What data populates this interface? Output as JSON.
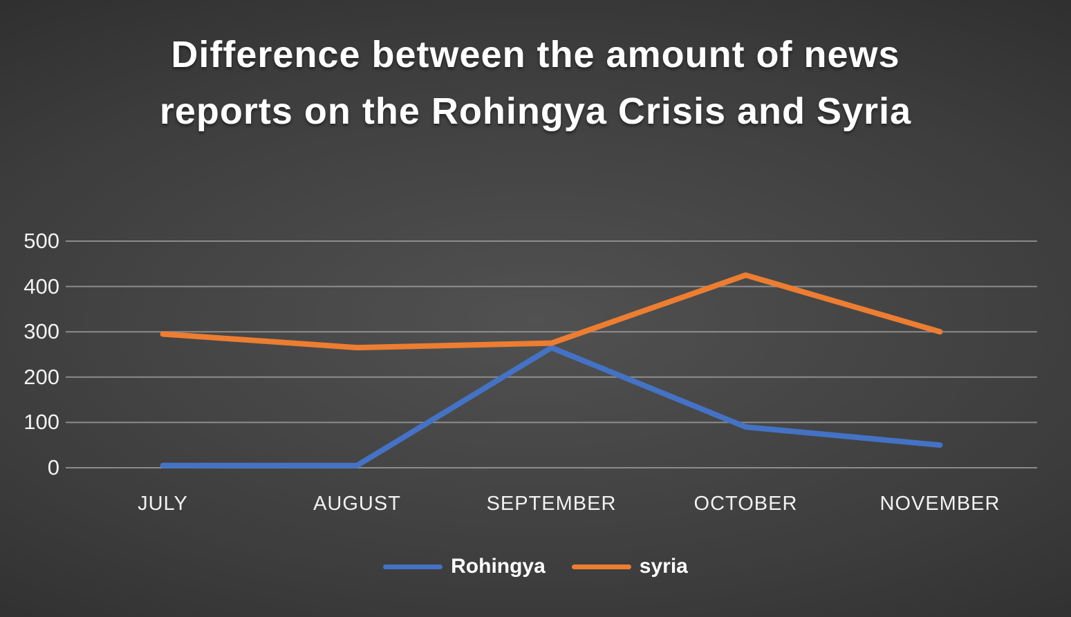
{
  "title": "Difference between the amount of news reports on the Rohingya Crisis and Syria",
  "chart_data": {
    "type": "line",
    "categories": [
      "JULY",
      "AUGUST",
      "SEPTEMBER",
      "OCTOBER",
      "NOVEMBER"
    ],
    "series": [
      {
        "name": "Rohingya",
        "color": "#4472c4",
        "values": [
          5,
          5,
          265,
          90,
          50
        ]
      },
      {
        "name": "syria",
        "color": "#ed7d31",
        "values": [
          295,
          265,
          275,
          425,
          300
        ]
      }
    ],
    "title": "Difference between the amount of news reports on the Rohingya Crisis and Syria",
    "xlabel": "",
    "ylabel": "",
    "ylim": [
      0,
      500
    ],
    "yticks": [
      0,
      100,
      200,
      300,
      400,
      500
    ],
    "grid": true,
    "legend_position": "bottom"
  },
  "colors": {
    "background_center": "#515151",
    "background_edge": "#1e1e1e",
    "grid_line": "#a6a6a6",
    "title_text": "#ffffff",
    "axis_text": "#f2f2f2",
    "series_rohingya": "#4472c4",
    "series_syria": "#ed7d31"
  }
}
